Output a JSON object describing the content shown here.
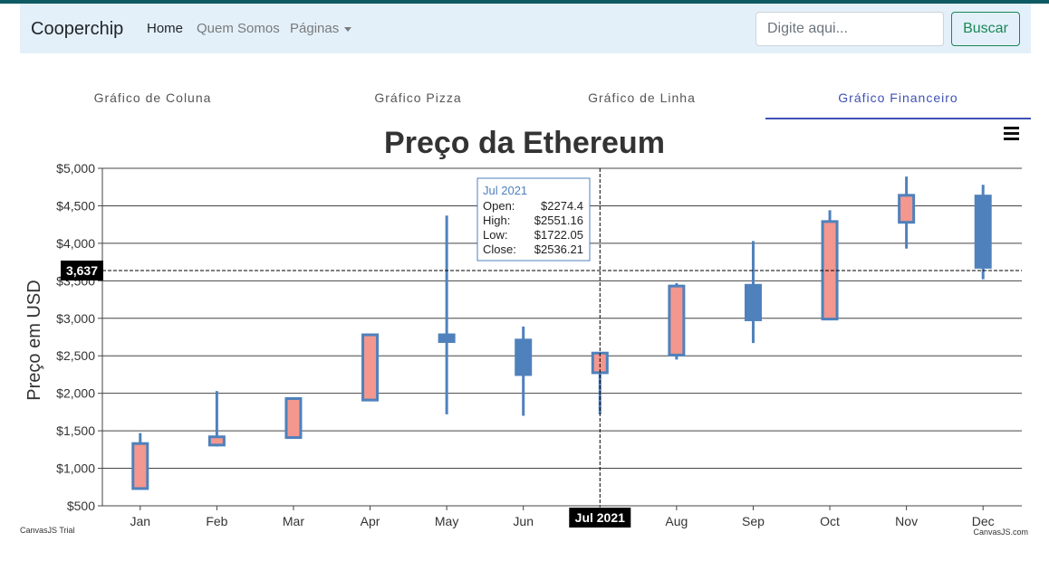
{
  "navbar": {
    "brand": "Cooperchip",
    "links": [
      {
        "label": "Home",
        "active": true
      },
      {
        "label": "Quem Somos",
        "active": false
      },
      {
        "label": "Páginas",
        "active": false,
        "dropdown": true
      }
    ],
    "search": {
      "placeholder": "Digite aqui...",
      "value": ""
    },
    "search_button": "Buscar"
  },
  "tabs": [
    {
      "label": "Gráfico de Coluna",
      "active": false
    },
    {
      "label": "Gráfico Pizza",
      "active": false
    },
    {
      "label": "Gráfico de Linha",
      "active": false
    },
    {
      "label": "Gráfico Financeiro",
      "active": true
    }
  ],
  "colors": {
    "rising_fill": "#f4978e",
    "falling_fill": "#4f81bc",
    "candle_border": "#4f81bc",
    "tab_active": "#3f51b5",
    "button": "#198754"
  },
  "chart_data": {
    "type": "candlestick",
    "title": "Preço da Ethereum",
    "ylabel": "Preço em USD",
    "xlabel": "",
    "ylim": [
      500,
      5000
    ],
    "yticks": [
      "$500",
      "$1,000",
      "$1,500",
      "$2,000",
      "$2,500",
      "$3,000",
      "$3,500",
      "$4,000",
      "$4,500",
      "$5,000"
    ],
    "ytick_values": [
      500,
      1000,
      1500,
      2000,
      2500,
      3000,
      3500,
      4000,
      4500,
      5000
    ],
    "categories": [
      "Jan",
      "Feb",
      "Mar",
      "Apr",
      "May",
      "Jun",
      "Jul",
      "Aug",
      "Sep",
      "Oct",
      "Nov",
      "Dec"
    ],
    "candles": [
      {
        "month": "Jan",
        "open": 730,
        "high": 1470,
        "low": 720,
        "close": 1330
      },
      {
        "month": "Feb",
        "open": 1310,
        "high": 2030,
        "low": 1290,
        "close": 1420
      },
      {
        "month": "Mar",
        "open": 1410,
        "high": 1940,
        "low": 1400,
        "close": 1930
      },
      {
        "month": "Apr",
        "open": 1910,
        "high": 2780,
        "low": 1900,
        "close": 2780
      },
      {
        "month": "May",
        "open": 2780,
        "high": 4370,
        "low": 1720,
        "close": 2690
      },
      {
        "month": "Jun",
        "open": 2710,
        "high": 2890,
        "low": 1700,
        "close": 2250
      },
      {
        "month": "Jul",
        "open": 2274.4,
        "high": 2551.16,
        "low": 1722.05,
        "close": 2536.21
      },
      {
        "month": "Aug",
        "open": 2510,
        "high": 3470,
        "low": 2450,
        "close": 3430
      },
      {
        "month": "Sep",
        "open": 3440,
        "high": 4030,
        "low": 2670,
        "close": 2980
      },
      {
        "month": "Oct",
        "open": 2990,
        "high": 4440,
        "low": 2990,
        "close": 4290
      },
      {
        "month": "Nov",
        "open": 4280,
        "high": 4890,
        "low": 3930,
        "close": 4640
      },
      {
        "month": "Dec",
        "open": 4630,
        "high": 4780,
        "low": 3520,
        "close": 3680
      }
    ],
    "tooltip": {
      "title": "Jul 2021",
      "rows": [
        {
          "label": "Open:",
          "value": "$2274.4"
        },
        {
          "label": "High:",
          "value": "$2551.16"
        },
        {
          "label": "Low:",
          "value": "$1722.05"
        },
        {
          "label": "Close:",
          "value": "$2536.21"
        }
      ]
    },
    "crosshair": {
      "x_label": "Jul 2021",
      "x_category": "Jul",
      "y_label": "3,637",
      "y_value": 3637
    },
    "grid": true,
    "credits": {
      "left": "CanvasJS Trial",
      "right": "CanvasJS.com"
    },
    "menu_icon": "hamburger-menu-icon"
  }
}
